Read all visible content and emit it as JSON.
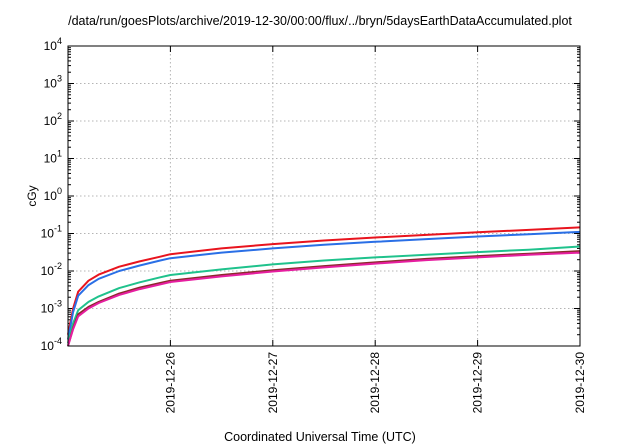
{
  "chart_data": {
    "type": "line",
    "title": "/data/run/goesPlots/archive/2019-12-30/00:00/flux/../bryn/5daysEarthDataAccumulated.plot",
    "xlabel": "Coordinated Universal Time (UTC)",
    "ylabel": "cGy",
    "x_scale": "time",
    "y_scale": "log",
    "xlim": [
      "2019-12-25 00:00",
      "2019-12-30 00:00"
    ],
    "ylim": [
      0.0001,
      10000
    ],
    "x_ticks": [
      "2019-12-26",
      "2019-12-27",
      "2019-12-28",
      "2019-12-29",
      "2019-12-30"
    ],
    "y_ticks": [
      {
        "base": "10",
        "exp": "-4",
        "value": 0.0001
      },
      {
        "base": "10",
        "exp": "-3",
        "value": 0.001
      },
      {
        "base": "10",
        "exp": "-2",
        "value": 0.01
      },
      {
        "base": "10",
        "exp": "-1",
        "value": 0.1
      },
      {
        "base": "10",
        "exp": "0",
        "value": 1
      },
      {
        "base": "10",
        "exp": "1",
        "value": 10
      },
      {
        "base": "10",
        "exp": "2",
        "value": 100
      },
      {
        "base": "10",
        "exp": "3",
        "value": 1000
      },
      {
        "base": "10",
        "exp": "4",
        "value": 10000
      }
    ],
    "grid": true,
    "legend": "none",
    "series": [
      {
        "color": "#e8141e",
        "points": [
          [
            "2019-12-25 00:00",
            0.0002
          ],
          [
            "2019-12-25 01:12",
            0.001
          ],
          [
            "2019-12-25 02:24",
            0.0028
          ],
          [
            "2019-12-25 04:48",
            0.0055
          ],
          [
            "2019-12-25 07:12",
            0.008
          ],
          [
            "2019-12-25 12:00",
            0.013
          ],
          [
            "2019-12-25 16:48",
            0.018
          ],
          [
            "2019-12-25 21:36",
            0.024
          ],
          [
            "2019-12-26 00:00",
            0.028
          ],
          [
            "2019-12-26 12:00",
            0.04
          ],
          [
            "2019-12-27 00:00",
            0.052
          ],
          [
            "2019-12-27 12:00",
            0.065
          ],
          [
            "2019-12-28 00:00",
            0.078
          ],
          [
            "2019-12-28 12:00",
            0.092
          ],
          [
            "2019-12-29 00:00",
            0.108
          ],
          [
            "2019-12-29 12:00",
            0.125
          ],
          [
            "2019-12-30 00:00",
            0.145
          ]
        ]
      },
      {
        "color": "#2a6fe6",
        "points": [
          [
            "2019-12-25 00:00",
            0.00015
          ],
          [
            "2019-12-25 01:12",
            0.0008
          ],
          [
            "2019-12-25 02:24",
            0.0022
          ],
          [
            "2019-12-25 04:48",
            0.0042
          ],
          [
            "2019-12-25 07:12",
            0.0062
          ],
          [
            "2019-12-25 12:00",
            0.01
          ],
          [
            "2019-12-25 16:48",
            0.014
          ],
          [
            "2019-12-25 21:36",
            0.019
          ],
          [
            "2019-12-26 00:00",
            0.022
          ],
          [
            "2019-12-26 12:00",
            0.031
          ],
          [
            "2019-12-27 00:00",
            0.04
          ],
          [
            "2019-12-27 12:00",
            0.05
          ],
          [
            "2019-12-28 00:00",
            0.06
          ],
          [
            "2019-12-28 12:00",
            0.071
          ],
          [
            "2019-12-29 00:00",
            0.083
          ],
          [
            "2019-12-29 12:00",
            0.096
          ],
          [
            "2019-12-30 00:00",
            0.11
          ]
        ]
      },
      {
        "color": "#1fc28c",
        "points": [
          [
            "2019-12-25 00:00",
            0.00012
          ],
          [
            "2019-12-25 01:12",
            0.0004
          ],
          [
            "2019-12-25 02:24",
            0.0009
          ],
          [
            "2019-12-25 04:48",
            0.0015
          ],
          [
            "2019-12-25 07:12",
            0.0021
          ],
          [
            "2019-12-25 12:00",
            0.0035
          ],
          [
            "2019-12-25 16:48",
            0.005
          ],
          [
            "2019-12-25 21:36",
            0.0068
          ],
          [
            "2019-12-26 00:00",
            0.0078
          ],
          [
            "2019-12-26 12:00",
            0.011
          ],
          [
            "2019-12-27 00:00",
            0.015
          ],
          [
            "2019-12-27 12:00",
            0.019
          ],
          [
            "2019-12-28 00:00",
            0.023
          ],
          [
            "2019-12-28 12:00",
            0.027
          ],
          [
            "2019-12-29 00:00",
            0.032
          ],
          [
            "2019-12-29 12:00",
            0.037
          ],
          [
            "2019-12-30 00:00",
            0.045
          ]
        ]
      },
      {
        "color": "#8a2a2a",
        "points": [
          [
            "2019-12-25 00:00",
            0.0001
          ],
          [
            "2019-12-25 01:12",
            0.0003
          ],
          [
            "2019-12-25 02:24",
            0.0007
          ],
          [
            "2019-12-25 04:48",
            0.0011
          ],
          [
            "2019-12-25 07:12",
            0.0015
          ],
          [
            "2019-12-25 12:00",
            0.0025
          ],
          [
            "2019-12-25 16:48",
            0.0036
          ],
          [
            "2019-12-25 21:36",
            0.0048
          ],
          [
            "2019-12-26 00:00",
            0.0055
          ],
          [
            "2019-12-26 12:00",
            0.0078
          ],
          [
            "2019-12-27 00:00",
            0.0105
          ],
          [
            "2019-12-27 12:00",
            0.0135
          ],
          [
            "2019-12-28 00:00",
            0.017
          ],
          [
            "2019-12-28 12:00",
            0.021
          ],
          [
            "2019-12-29 00:00",
            0.025
          ],
          [
            "2019-12-29 12:00",
            0.029
          ],
          [
            "2019-12-30 00:00",
            0.034
          ]
        ]
      },
      {
        "color": "#e61ea0",
        "points": [
          [
            "2019-12-25 00:00",
            0.0001
          ],
          [
            "2019-12-25 01:12",
            0.00028
          ],
          [
            "2019-12-25 02:24",
            0.00062
          ],
          [
            "2019-12-25 04:48",
            0.001
          ],
          [
            "2019-12-25 07:12",
            0.0014
          ],
          [
            "2019-12-25 12:00",
            0.0023
          ],
          [
            "2019-12-25 16:48",
            0.0033
          ],
          [
            "2019-12-25 21:36",
            0.0044
          ],
          [
            "2019-12-26 00:00",
            0.0051
          ],
          [
            "2019-12-26 12:00",
            0.0072
          ],
          [
            "2019-12-27 00:00",
            0.0097
          ],
          [
            "2019-12-27 12:00",
            0.0125
          ],
          [
            "2019-12-28 00:00",
            0.0158
          ],
          [
            "2019-12-28 12:00",
            0.0195
          ],
          [
            "2019-12-29 00:00",
            0.023
          ],
          [
            "2019-12-29 12:00",
            0.027
          ],
          [
            "2019-12-30 00:00",
            0.031
          ]
        ]
      }
    ]
  }
}
